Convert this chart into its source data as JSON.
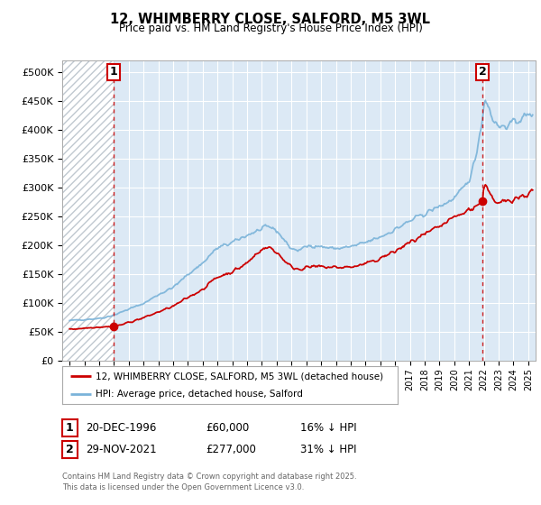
{
  "title": "12, WHIMBERRY CLOSE, SALFORD, M5 3WL",
  "subtitle": "Price paid vs. HM Land Registry's House Price Index (HPI)",
  "ylabel_ticks": [
    "£0",
    "£50K",
    "£100K",
    "£150K",
    "£200K",
    "£250K",
    "£300K",
    "£350K",
    "£400K",
    "£450K",
    "£500K"
  ],
  "ytick_values": [
    0,
    50000,
    100000,
    150000,
    200000,
    250000,
    300000,
    350000,
    400000,
    450000,
    500000
  ],
  "xlim_start": 1993.5,
  "xlim_end": 2025.5,
  "ylim": [
    0,
    520000
  ],
  "transaction1_x": 1996.97,
  "transaction1_y": 60000,
  "transaction2_x": 2021.91,
  "transaction2_y": 277000,
  "hpi_color": "#7ab3d9",
  "price_color": "#cc0000",
  "annotation_color": "#cc0000",
  "background_color": "#ffffff",
  "plot_bg_color": "#dce9f5",
  "grid_color": "#ffffff",
  "hatch_color": "#c0c8d0",
  "legend_label1": "12, WHIMBERRY CLOSE, SALFORD, M5 3WL (detached house)",
  "legend_label2": "HPI: Average price, detached house, Salford",
  "footer_line1": "Contains HM Land Registry data © Crown copyright and database right 2025.",
  "footer_line2": "This data is licensed under the Open Government Licence v3.0.",
  "row1_label": "1",
  "row1_date": "20-DEC-1996",
  "row1_price": "£60,000",
  "row1_pct": "16% ↓ HPI",
  "row2_label": "2",
  "row2_date": "29-NOV-2021",
  "row2_price": "£277,000",
  "row2_pct": "31% ↓ HPI"
}
